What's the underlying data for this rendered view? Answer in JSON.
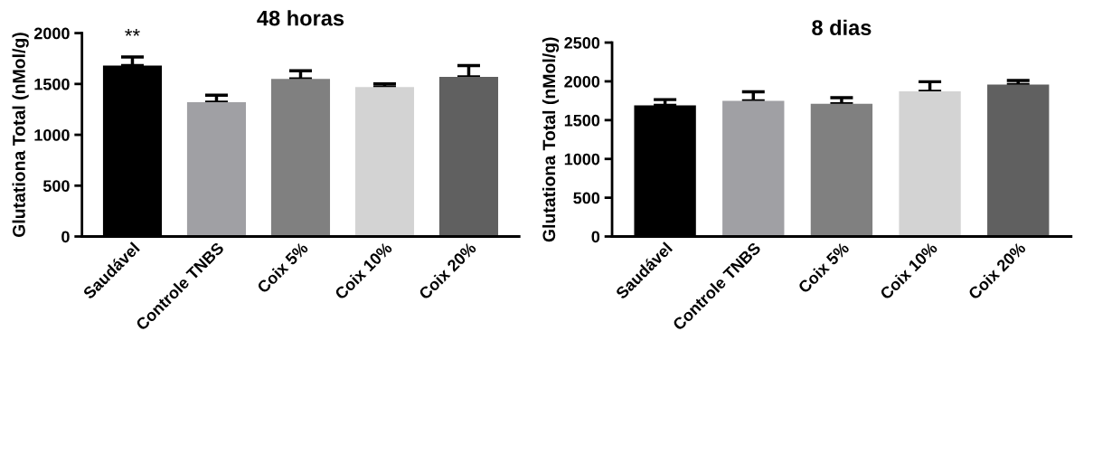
{
  "chart_data": [
    {
      "type": "bar",
      "title": "48 horas",
      "ylabel": "Glutationa Total (nMol/g)",
      "categories": [
        "Saudável",
        "Controle TNBS",
        "Coix 5%",
        "Coix 10%",
        "Coix 20%"
      ],
      "values": [
        1680,
        1320,
        1550,
        1470,
        1570
      ],
      "errors": [
        85,
        70,
        80,
        30,
        110
      ],
      "colors": [
        "#000000",
        "#a0a0a4",
        "#808080",
        "#d3d3d3",
        "#606060"
      ],
      "ylim": [
        0,
        2000
      ],
      "yticks": [
        0,
        500,
        1000,
        1500,
        2000
      ],
      "grid": false,
      "annotations": [
        "**"
      ]
    },
    {
      "type": "bar",
      "title": "8 dias",
      "ylabel": "Glutationa Total (nMol/g)",
      "categories": [
        "Saudável",
        "Controle TNBS",
        "Coix 5%",
        "Coix 10%",
        "Coix 20%"
      ],
      "values": [
        1690,
        1750,
        1710,
        1870,
        1960
      ],
      "errors": [
        75,
        115,
        80,
        125,
        50
      ],
      "colors": [
        "#000000",
        "#a0a0a4",
        "#808080",
        "#d3d3d3",
        "#606060"
      ],
      "ylim": [
        0,
        2500
      ],
      "yticks": [
        0,
        500,
        1000,
        1500,
        2000,
        2500
      ],
      "grid": false
    }
  ]
}
